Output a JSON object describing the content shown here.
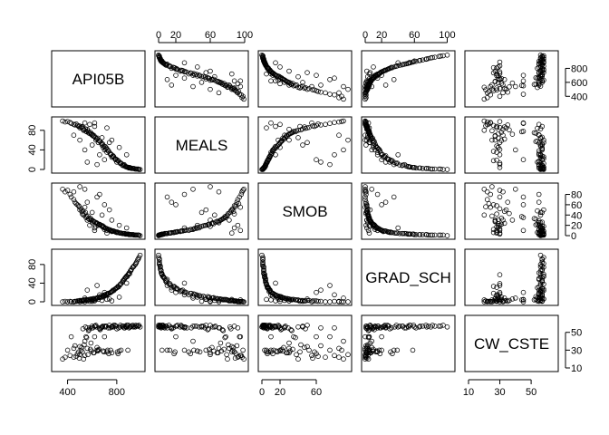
{
  "chart_data": {
    "type": "scatter",
    "title": "",
    "variables": [
      "API05B",
      "MEALS",
      "SMOB",
      "GRAD_SCH",
      "CW_CSTE"
    ],
    "ranges": {
      "API05B": [
        300,
        1000
      ],
      "MEALS": [
        0,
        100
      ],
      "SMOB": [
        0,
        95
      ],
      "GRAD_SCH": [
        0,
        105
      ],
      "CW_CSTE": [
        10,
        65
      ]
    },
    "axes": {
      "top": [
        {
          "column": 1,
          "variable": "MEALS",
          "ticks": [
            0,
            20,
            60,
            100
          ],
          "labels": [
            "0",
            "20",
            "60",
            "100"
          ]
        },
        {
          "column": 3,
          "variable": "GRAD_SCH",
          "ticks": [
            0,
            20,
            60,
            100
          ],
          "labels": [
            "0",
            "20",
            "60",
            "100"
          ]
        }
      ],
      "bottom": [
        {
          "column": 0,
          "variable": "API05B",
          "ticks": [
            400,
            800
          ],
          "labels": [
            "400",
            "800"
          ]
        },
        {
          "column": 2,
          "variable": "SMOB",
          "ticks": [
            0,
            20,
            60
          ],
          "labels": [
            "0",
            "20",
            "60"
          ]
        },
        {
          "column": 4,
          "variable": "CW_CSTE",
          "ticks": [
            10,
            30,
            50
          ],
          "labels": [
            "10",
            "30",
            "50"
          ]
        }
      ],
      "left": [
        {
          "row": 1,
          "variable": "MEALS",
          "ticks": [
            0,
            40,
            80
          ],
          "labels": [
            "0",
            "40",
            "80"
          ]
        },
        {
          "row": 3,
          "variable": "GRAD_SCH",
          "ticks": [
            0,
            40,
            80
          ],
          "labels": [
            "0",
            "40",
            "80"
          ]
        }
      ],
      "right": [
        {
          "row": 0,
          "variable": "API05B",
          "ticks": [
            400,
            600,
            800
          ],
          "labels": [
            "400",
            "600",
            "800"
          ]
        },
        {
          "row": 2,
          "variable": "SMOB",
          "ticks": [
            0,
            20,
            40,
            60,
            80
          ],
          "labels": [
            "0",
            "20",
            "40",
            "60",
            "80"
          ]
        },
        {
          "row": 4,
          "variable": "CW_CSTE",
          "ticks": [
            10,
            30,
            50
          ],
          "labels": [
            "10",
            "30",
            "50"
          ]
        }
      ]
    },
    "observations": [
      [
        520,
        88,
        42,
        1,
        28
      ],
      [
        560,
        82,
        30,
        2,
        32
      ],
      [
        540,
        95,
        55,
        0,
        24
      ],
      [
        600,
        70,
        25,
        3,
        55
      ],
      [
        630,
        60,
        18,
        6,
        58
      ],
      [
        650,
        55,
        20,
        5,
        30
      ],
      [
        700,
        40,
        12,
        12,
        57
      ],
      [
        720,
        35,
        10,
        15,
        28
      ],
      [
        760,
        25,
        8,
        22,
        56
      ],
      [
        800,
        15,
        6,
        30,
        54
      ],
      [
        850,
        8,
        4,
        45,
        57
      ],
      [
        880,
        5,
        3,
        55,
        58
      ],
      [
        900,
        3,
        2,
        62,
        55
      ],
      [
        920,
        2,
        2,
        70,
        57
      ],
      [
        950,
        1,
        1,
        80,
        56
      ],
      [
        980,
        0,
        1,
        95,
        58
      ],
      [
        450,
        92,
        70,
        0,
        22
      ],
      [
        420,
        96,
        80,
        1,
        24
      ],
      [
        400,
        98,
        88,
        0,
        30
      ],
      [
        480,
        90,
        60,
        2,
        26
      ],
      [
        500,
        85,
        50,
        3,
        34
      ],
      [
        530,
        80,
        40,
        4,
        20
      ],
      [
        550,
        78,
        35,
        5,
        45
      ],
      [
        570,
        75,
        33,
        4,
        52
      ],
      [
        590,
        72,
        30,
        6,
        38
      ],
      [
        610,
        68,
        28,
        7,
        27
      ],
      [
        640,
        62,
        24,
        8,
        33
      ],
      [
        660,
        58,
        22,
        9,
        54
      ],
      [
        680,
        50,
        18,
        10,
        56
      ],
      [
        690,
        45,
        16,
        14,
        29
      ],
      [
        710,
        42,
        14,
        16,
        57
      ],
      [
        730,
        38,
        12,
        18,
        55
      ],
      [
        750,
        30,
        10,
        20,
        30
      ],
      [
        770,
        28,
        9,
        25,
        56
      ],
      [
        790,
        20,
        7,
        28,
        57
      ],
      [
        810,
        18,
        6,
        33,
        26
      ],
      [
        830,
        12,
        5,
        38,
        58
      ],
      [
        860,
        10,
        4,
        48,
        55
      ],
      [
        870,
        6,
        3,
        52,
        57
      ],
      [
        890,
        4,
        3,
        58,
        30
      ],
      [
        910,
        3,
        2,
        66,
        56
      ],
      [
        930,
        2,
        2,
        74,
        58
      ],
      [
        960,
        1,
        1,
        85,
        57
      ],
      [
        990,
        0,
        0,
        100,
        56
      ],
      [
        360,
        99,
        90,
        0,
        20
      ],
      [
        380,
        97,
        85,
        1,
        22
      ],
      [
        430,
        94,
        75,
        0,
        45
      ],
      [
        460,
        91,
        65,
        1,
        35
      ],
      [
        490,
        88,
        58,
        2,
        28
      ],
      [
        510,
        86,
        52,
        3,
        30
      ],
      [
        525,
        84,
        48,
        2,
        54
      ],
      [
        545,
        83,
        45,
        3,
        56
      ],
      [
        565,
        79,
        38,
        4,
        25
      ],
      [
        585,
        76,
        34,
        5,
        31
      ],
      [
        605,
        71,
        29,
        6,
        55
      ],
      [
        625,
        66,
        26,
        7,
        57
      ],
      [
        645,
        64,
        23,
        9,
        29
      ],
      [
        665,
        57,
        21,
        11,
        53
      ],
      [
        685,
        52,
        19,
        12,
        57
      ],
      [
        705,
        47,
        15,
        13,
        56
      ],
      [
        725,
        41,
        13,
        17,
        30
      ],
      [
        745,
        33,
        11,
        19,
        55
      ],
      [
        765,
        27,
        9,
        23,
        57
      ],
      [
        785,
        22,
        8,
        27,
        58
      ],
      [
        805,
        19,
        7,
        31,
        28
      ],
      [
        825,
        14,
        5,
        36,
        56
      ],
      [
        845,
        9,
        4,
        42,
        57
      ],
      [
        865,
        7,
        4,
        50,
        55
      ],
      [
        885,
        5,
        3,
        54,
        58
      ],
      [
        905,
        4,
        2,
        60,
        56
      ],
      [
        940,
        2,
        1,
        77,
        57
      ],
      [
        970,
        1,
        1,
        90,
        57
      ],
      [
        470,
        93,
        62,
        1,
        23
      ],
      [
        495,
        89,
        56,
        2,
        21
      ],
      [
        515,
        87,
        47,
        2,
        33
      ],
      [
        535,
        81,
        43,
        3,
        36
      ],
      [
        555,
        77,
        37,
        4,
        44
      ],
      [
        575,
        74,
        32,
        5,
        53
      ],
      [
        595,
        73,
        31,
        5,
        29
      ],
      [
        615,
        69,
        27,
        6,
        27
      ],
      [
        635,
        63,
        25,
        8,
        56
      ],
      [
        655,
        59,
        22,
        10,
        31
      ],
      [
        675,
        54,
        20,
        10,
        55
      ],
      [
        695,
        48,
        17,
        13,
        28
      ],
      [
        715,
        44,
        14,
        15,
        57
      ],
      [
        735,
        37,
        12,
        18,
        26
      ],
      [
        755,
        31,
        10,
        21,
        56
      ],
      [
        775,
        26,
        9,
        24,
        58
      ],
      [
        795,
        21,
        7,
        29,
        57
      ],
      [
        815,
        17,
        6,
        32,
        55
      ],
      [
        835,
        13,
        5,
        39,
        30
      ],
      [
        855,
        9,
        4,
        46,
        57
      ],
      [
        875,
        6,
        3,
        53,
        56
      ],
      [
        895,
        4,
        3,
        59,
        58
      ],
      [
        915,
        3,
        2,
        67,
        57
      ],
      [
        935,
        2,
        2,
        75,
        56
      ],
      [
        955,
        1,
        1,
        82,
        58
      ],
      [
        975,
        1,
        1,
        92,
        57
      ],
      [
        580,
        92,
        20,
        1,
        55
      ],
      [
        620,
        88,
        15,
        2,
        57
      ],
      [
        700,
        20,
        60,
        20,
        45
      ],
      [
        640,
        10,
        75,
        35,
        30
      ],
      [
        720,
        85,
        5,
        5,
        28
      ],
      [
        660,
        30,
        80,
        15,
        55
      ],
      [
        540,
        40,
        90,
        8,
        40
      ],
      [
        600,
        50,
        45,
        1,
        57
      ],
      [
        760,
        60,
        30,
        2,
        27
      ],
      [
        680,
        65,
        40,
        3,
        56
      ],
      [
        820,
        45,
        20,
        10,
        29
      ],
      [
        560,
        15,
        65,
        25,
        55
      ],
      [
        450,
        70,
        85,
        0,
        32
      ],
      [
        740,
        55,
        50,
        6,
        58
      ],
      [
        880,
        30,
        15,
        40,
        56
      ],
      [
        500,
        60,
        95,
        0,
        25
      ],
      [
        620,
        95,
        10,
        4,
        45
      ]
    ]
  }
}
